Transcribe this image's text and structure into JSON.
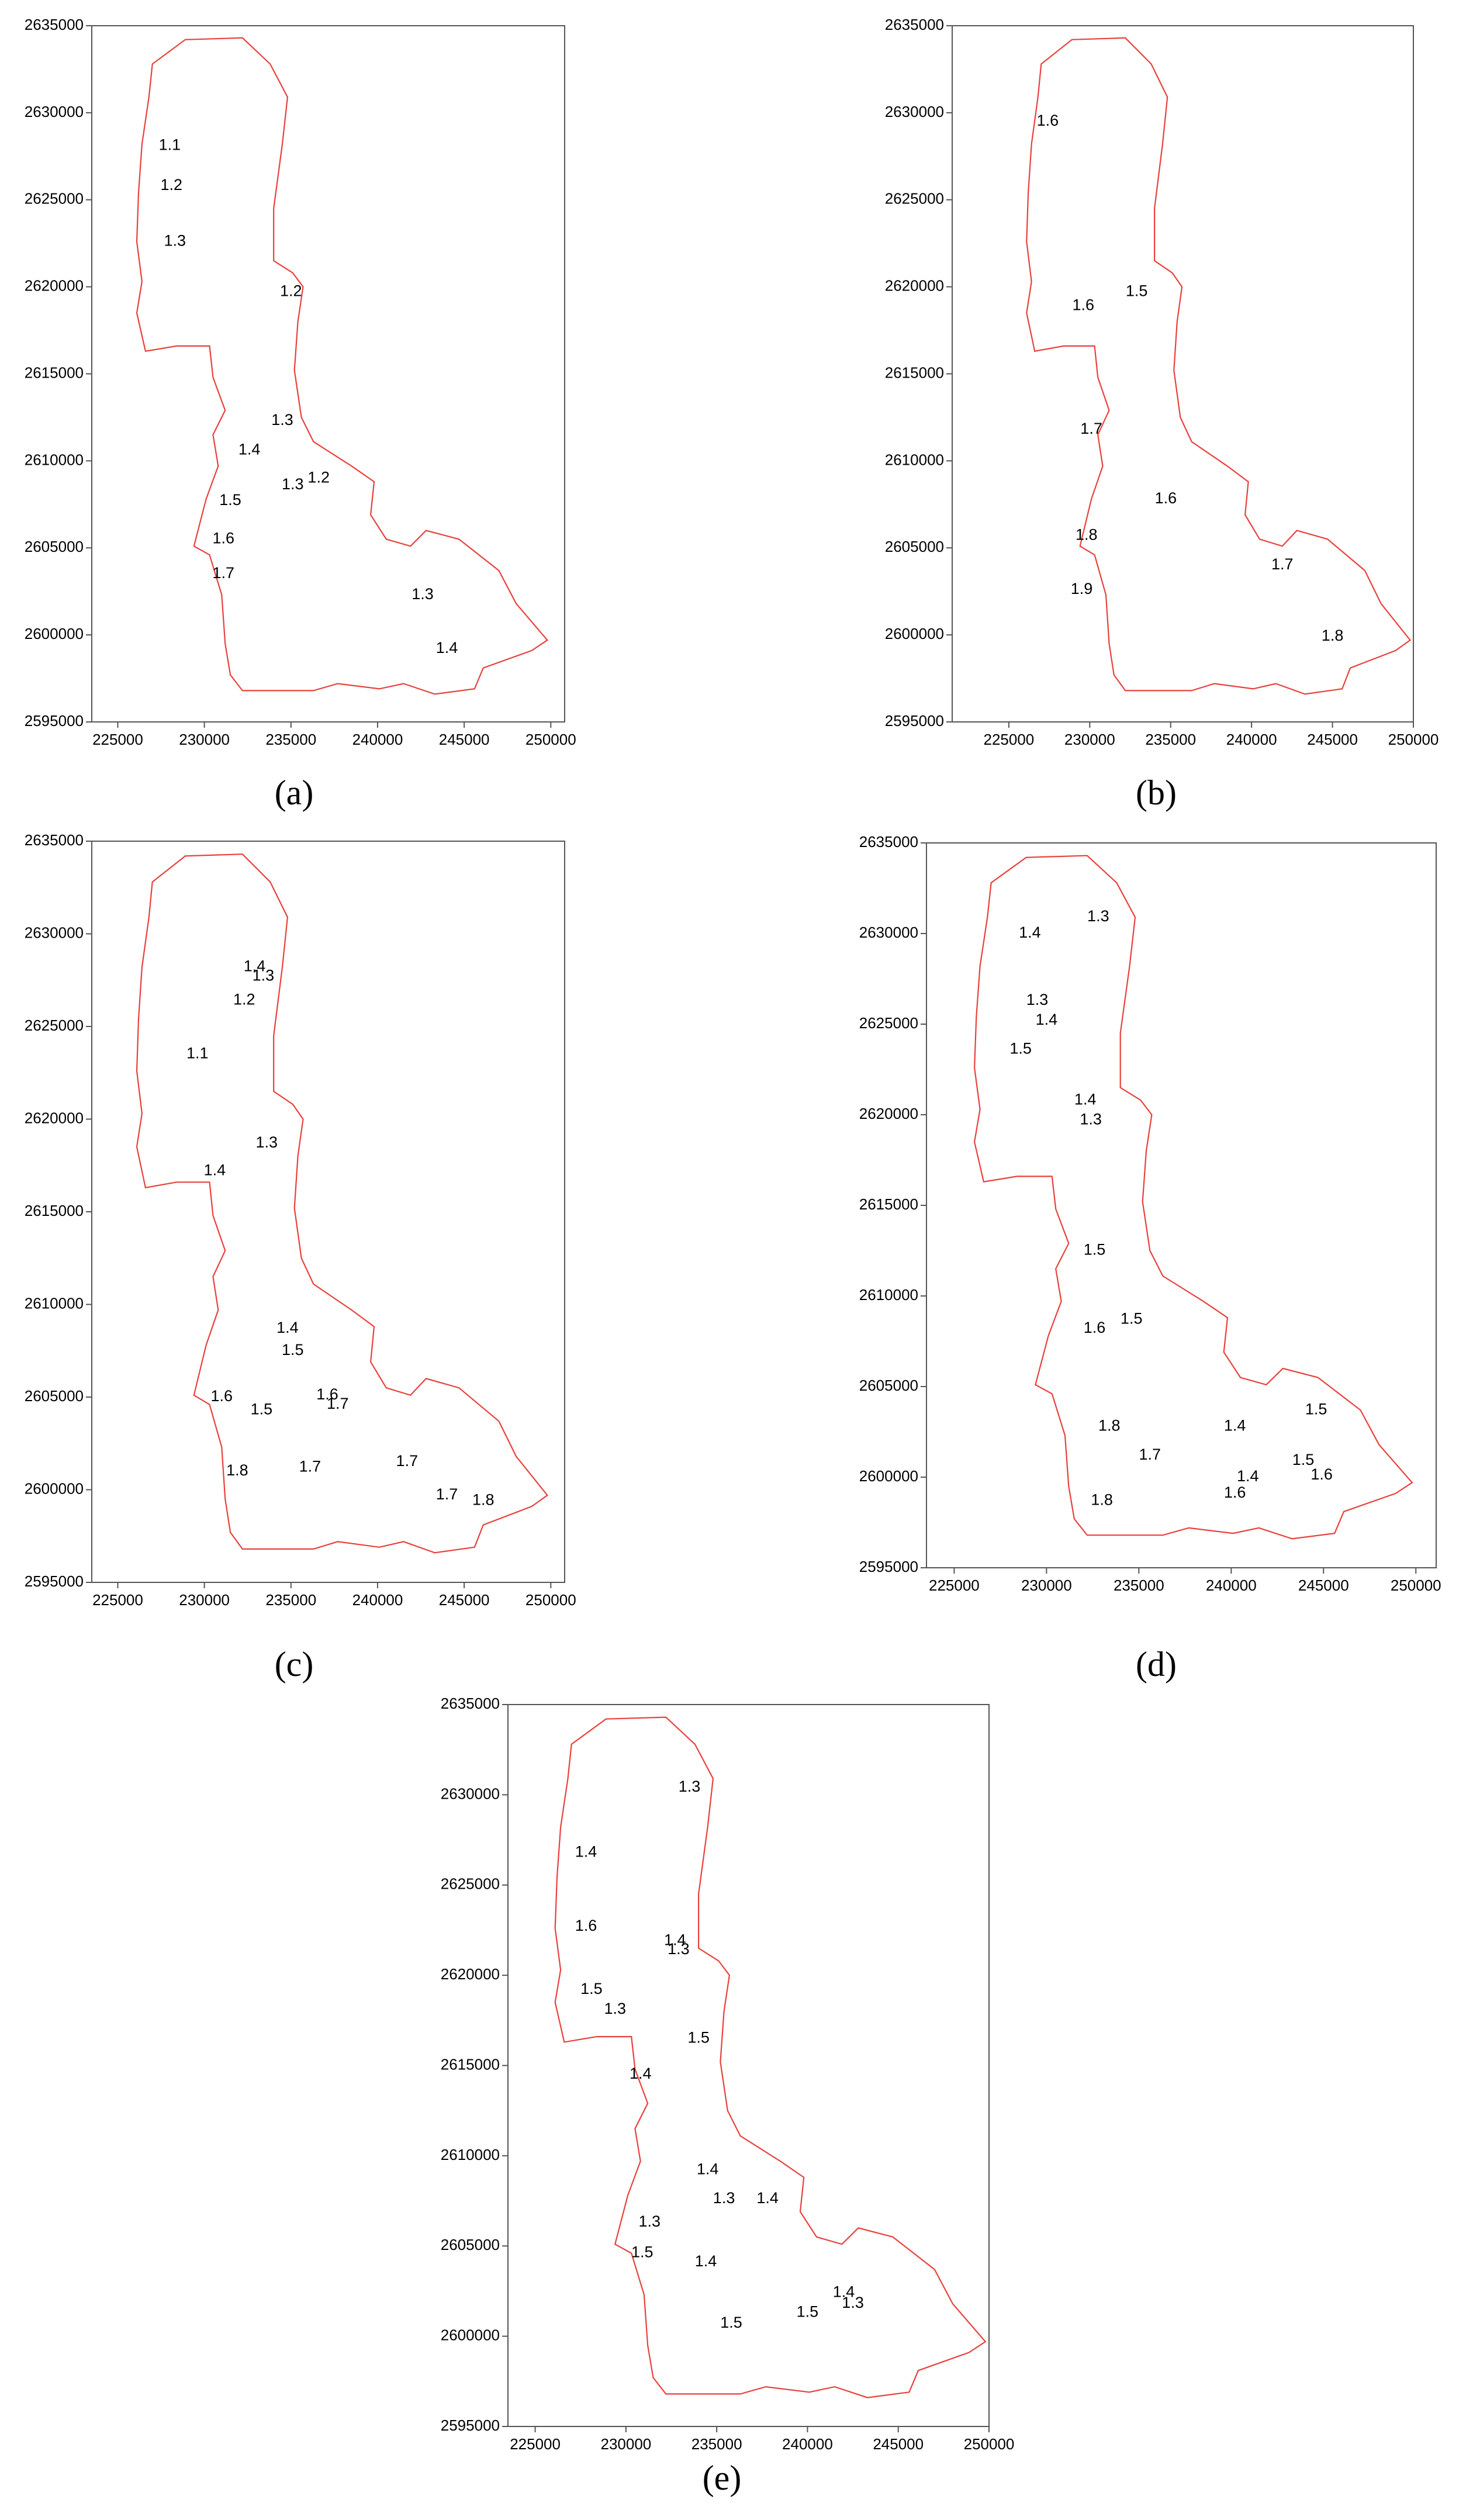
{
  "chart_data": [
    {
      "type": "contour",
      "panel_label": "(a)",
      "xlim": [
        223500,
        250800
      ],
      "ylim": [
        2595000,
        2635000
      ],
      "xticks": [
        225000,
        230000,
        235000,
        240000,
        245000,
        250000
      ],
      "yticks": [
        2595000,
        2600000,
        2605000,
        2610000,
        2615000,
        2620000,
        2625000,
        2630000,
        2635000
      ],
      "contour_labels": [
        {
          "level": 1.1,
          "x": 228000,
          "y": 2628100
        },
        {
          "level": 1.2,
          "x": 228100,
          "y": 2625800
        },
        {
          "level": 1.3,
          "x": 228300,
          "y": 2622600
        },
        {
          "level": 1.2,
          "x": 235000,
          "y": 2619700
        },
        {
          "level": 1.3,
          "x": 234500,
          "y": 2612300
        },
        {
          "level": 1.4,
          "x": 232600,
          "y": 2610600
        },
        {
          "level": 1.3,
          "x": 235100,
          "y": 2608600
        },
        {
          "level": 1.2,
          "x": 236600,
          "y": 2609000
        },
        {
          "level": 1.5,
          "x": 231500,
          "y": 2607700
        },
        {
          "level": 1.6,
          "x": 231100,
          "y": 2605500
        },
        {
          "level": 1.7,
          "x": 231100,
          "y": 2603500
        },
        {
          "level": 1.3,
          "x": 242600,
          "y": 2602300
        },
        {
          "level": 1.4,
          "x": 244000,
          "y": 2599200
        }
      ]
    },
    {
      "type": "contour",
      "panel_label": "(b)",
      "xlim": [
        221500,
        250000
      ],
      "ylim": [
        2595000,
        2635000
      ],
      "xticks": [
        225000,
        230000,
        235000,
        240000,
        245000,
        250000
      ],
      "yticks": [
        2595000,
        2600000,
        2605000,
        2610000,
        2615000,
        2620000,
        2625000,
        2630000,
        2635000
      ],
      "contour_labels": [
        {
          "level": 1.6,
          "x": 227400,
          "y": 2629500
        },
        {
          "level": 1.5,
          "x": 232900,
          "y": 2619700
        },
        {
          "level": 1.6,
          "x": 229600,
          "y": 2618900
        },
        {
          "level": 1.7,
          "x": 230100,
          "y": 2611800
        },
        {
          "level": 1.6,
          "x": 234700,
          "y": 2607800
        },
        {
          "level": 1.8,
          "x": 229800,
          "y": 2605700
        },
        {
          "level": 1.7,
          "x": 241900,
          "y": 2604000
        },
        {
          "level": 1.9,
          "x": 229500,
          "y": 2602600
        },
        {
          "level": 1.8,
          "x": 245000,
          "y": 2599900
        }
      ]
    },
    {
      "type": "contour",
      "panel_label": "(c)",
      "xlim": [
        223500,
        250800
      ],
      "ylim": [
        2595000,
        2635000
      ],
      "xticks": [
        225000,
        230000,
        235000,
        240000,
        245000,
        250000
      ],
      "yticks": [
        2595000,
        2600000,
        2605000,
        2610000,
        2615000,
        2620000,
        2625000,
        2630000,
        2635000
      ],
      "contour_labels": [
        {
          "level": 1.4,
          "x": 232900,
          "y": 2628200
        },
        {
          "level": 1.3,
          "x": 233400,
          "y": 2627700
        },
        {
          "level": 1.2,
          "x": 232300,
          "y": 2626400
        },
        {
          "level": 1.1,
          "x": 229600,
          "y": 2623500
        },
        {
          "level": 1.3,
          "x": 233600,
          "y": 2618700
        },
        {
          "level": 1.4,
          "x": 230600,
          "y": 2617200
        },
        {
          "level": 1.4,
          "x": 234800,
          "y": 2608700
        },
        {
          "level": 1.5,
          "x": 235100,
          "y": 2607500
        },
        {
          "level": 1.6,
          "x": 231000,
          "y": 2605000
        },
        {
          "level": 1.5,
          "x": 233300,
          "y": 2604300
        },
        {
          "level": 1.6,
          "x": 237100,
          "y": 2605100
        },
        {
          "level": 1.7,
          "x": 237700,
          "y": 2604600
        },
        {
          "level": 1.8,
          "x": 231900,
          "y": 2601000
        },
        {
          "level": 1.7,
          "x": 236100,
          "y": 2601200
        },
        {
          "level": 1.7,
          "x": 241700,
          "y": 2601500
        },
        {
          "level": 1.7,
          "x": 244000,
          "y": 2599700
        },
        {
          "level": 1.8,
          "x": 246100,
          "y": 2599400
        }
      ]
    },
    {
      "type": "contour",
      "panel_label": "(d)",
      "xlim": [
        223500,
        251100
      ],
      "ylim": [
        2595000,
        2635000
      ],
      "xticks": [
        225000,
        230000,
        235000,
        240000,
        245000,
        250000
      ],
      "yticks": [
        2595000,
        2600000,
        2605000,
        2610000,
        2615000,
        2620000,
        2625000,
        2630000,
        2635000
      ],
      "contour_labels": [
        {
          "level": 1.3,
          "x": 232800,
          "y": 2630900
        },
        {
          "level": 1.4,
          "x": 229100,
          "y": 2630000
        },
        {
          "level": 1.3,
          "x": 229500,
          "y": 2626300
        },
        {
          "level": 1.4,
          "x": 230000,
          "y": 2625200
        },
        {
          "level": 1.5,
          "x": 228600,
          "y": 2623600
        },
        {
          "level": 1.4,
          "x": 232100,
          "y": 2620800
        },
        {
          "level": 1.3,
          "x": 232400,
          "y": 2619700
        },
        {
          "level": 1.5,
          "x": 232600,
          "y": 2612500
        },
        {
          "level": 1.5,
          "x": 234600,
          "y": 2608700
        },
        {
          "level": 1.6,
          "x": 232600,
          "y": 2608200
        },
        {
          "level": 1.8,
          "x": 233400,
          "y": 2602800
        },
        {
          "level": 1.7,
          "x": 235600,
          "y": 2601200
        },
        {
          "level": 1.4,
          "x": 240200,
          "y": 2602800
        },
        {
          "level": 1.5,
          "x": 244600,
          "y": 2603700
        },
        {
          "level": 1.5,
          "x": 243900,
          "y": 2600900
        },
        {
          "level": 1.6,
          "x": 244900,
          "y": 2600100
        },
        {
          "level": 1.4,
          "x": 240900,
          "y": 2600000
        },
        {
          "level": 1.6,
          "x": 240200,
          "y": 2599100
        },
        {
          "level": 1.8,
          "x": 233000,
          "y": 2598700
        }
      ]
    },
    {
      "type": "contour",
      "panel_label": "(e)",
      "xlim": [
        223500,
        250000
      ],
      "ylim": [
        2595000,
        2635000
      ],
      "xticks": [
        225000,
        230000,
        235000,
        240000,
        245000,
        250000
      ],
      "yticks": [
        2595000,
        2600000,
        2605000,
        2610000,
        2615000,
        2620000,
        2625000,
        2630000,
        2635000
      ],
      "contour_labels": [
        {
          "level": 1.3,
          "x": 233500,
          "y": 2630400
        },
        {
          "level": 1.4,
          "x": 227800,
          "y": 2626800
        },
        {
          "level": 1.6,
          "x": 227800,
          "y": 2622700
        },
        {
          "level": 1.4,
          "x": 232700,
          "y": 2621900
        },
        {
          "level": 1.3,
          "x": 232900,
          "y": 2621400
        },
        {
          "level": 1.5,
          "x": 228100,
          "y": 2619200
        },
        {
          "level": 1.3,
          "x": 229400,
          "y": 2618100
        },
        {
          "level": 1.5,
          "x": 234000,
          "y": 2616500
        },
        {
          "level": 1.4,
          "x": 230800,
          "y": 2614500
        },
        {
          "level": 1.4,
          "x": 234500,
          "y": 2609200
        },
        {
          "level": 1.3,
          "x": 235400,
          "y": 2607600
        },
        {
          "level": 1.4,
          "x": 237800,
          "y": 2607600
        },
        {
          "level": 1.3,
          "x": 231300,
          "y": 2606300
        },
        {
          "level": 1.5,
          "x": 230900,
          "y": 2604600
        },
        {
          "level": 1.4,
          "x": 234400,
          "y": 2604100
        },
        {
          "level": 1.5,
          "x": 235800,
          "y": 2600700
        },
        {
          "level": 1.5,
          "x": 240000,
          "y": 2601300
        },
        {
          "level": 1.4,
          "x": 242000,
          "y": 2602400
        },
        {
          "level": 1.3,
          "x": 242500,
          "y": 2601800
        }
      ]
    }
  ],
  "boundary": {
    "color": "#e8413c",
    "points": [
      [
        227000,
        2632800
      ],
      [
        228900,
        2634200
      ],
      [
        232200,
        2634300
      ],
      [
        233800,
        2632800
      ],
      [
        234800,
        2630900
      ],
      [
        234500,
        2628200
      ],
      [
        234000,
        2624500
      ],
      [
        234000,
        2621500
      ],
      [
        235100,
        2620800
      ],
      [
        235700,
        2620000
      ],
      [
        235400,
        2618000
      ],
      [
        235200,
        2615200
      ],
      [
        235600,
        2612500
      ],
      [
        236300,
        2611100
      ],
      [
        238500,
        2609700
      ],
      [
        239800,
        2608800
      ],
      [
        239600,
        2606900
      ],
      [
        240500,
        2605500
      ],
      [
        241900,
        2605100
      ],
      [
        242800,
        2606000
      ],
      [
        244700,
        2605500
      ],
      [
        247000,
        2603700
      ],
      [
        248000,
        2601800
      ],
      [
        249800,
        2599700
      ],
      [
        248900,
        2599100
      ],
      [
        246100,
        2598100
      ],
      [
        245600,
        2596900
      ],
      [
        243300,
        2596600
      ],
      [
        241500,
        2597200
      ],
      [
        240100,
        2596900
      ],
      [
        237700,
        2597200
      ],
      [
        236300,
        2596800
      ],
      [
        232200,
        2596800
      ],
      [
        231500,
        2597700
      ],
      [
        231200,
        2599500
      ],
      [
        231000,
        2602300
      ],
      [
        230300,
        2604600
      ],
      [
        229400,
        2605100
      ],
      [
        230100,
        2607800
      ],
      [
        230800,
        2609700
      ],
      [
        230500,
        2611500
      ],
      [
        231200,
        2612900
      ],
      [
        230500,
        2614800
      ],
      [
        230300,
        2616600
      ],
      [
        228400,
        2616600
      ],
      [
        226600,
        2616300
      ],
      [
        226100,
        2618500
      ],
      [
        226400,
        2620300
      ],
      [
        226100,
        2622600
      ],
      [
        226200,
        2625400
      ],
      [
        226400,
        2628200
      ],
      [
        226800,
        2630900
      ]
    ]
  }
}
